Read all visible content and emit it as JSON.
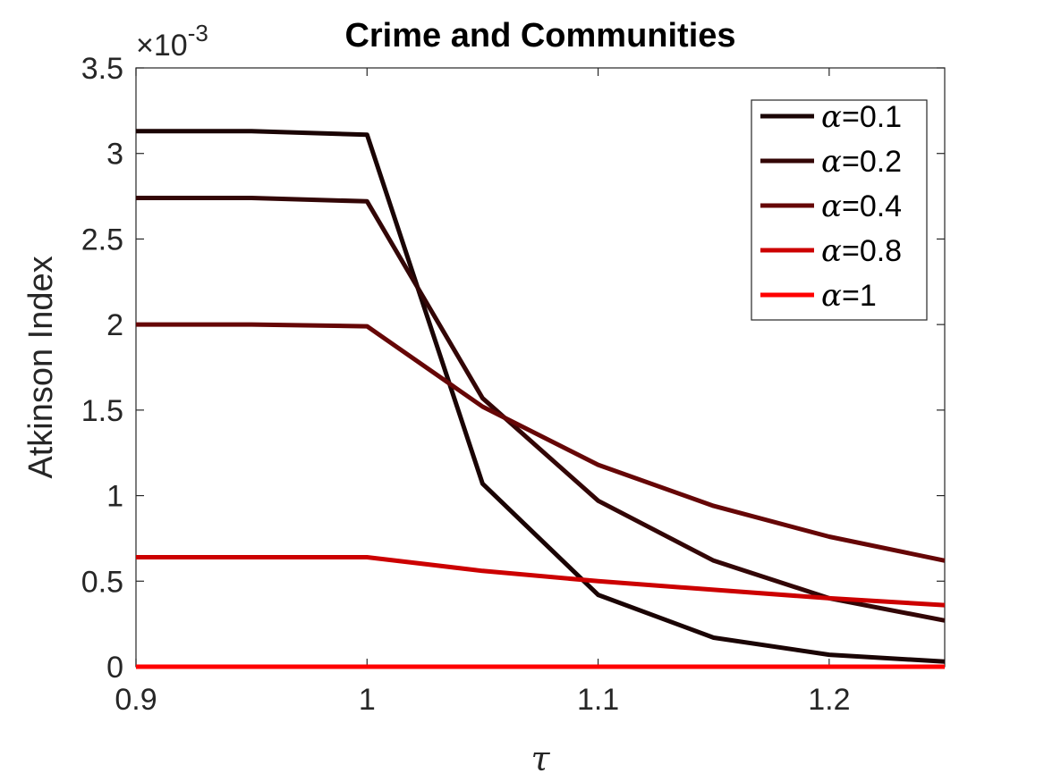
{
  "chart_data": {
    "type": "line",
    "title": "Crime and Communities",
    "xlabel": "τ",
    "ylabel": "Atkinson Index",
    "y_exponent_label": "×10",
    "y_exponent_power": "-3",
    "xlim": [
      0.9,
      1.25
    ],
    "ylim": [
      0,
      3.5
    ],
    "x_ticks": [
      0.9,
      1.0,
      1.1,
      1.2
    ],
    "x_tick_labels": [
      "0.9",
      "1",
      "1.1",
      "1.2"
    ],
    "y_ticks": [
      0,
      0.5,
      1,
      1.5,
      2,
      2.5,
      3,
      3.5
    ],
    "y_tick_labels": [
      "0",
      "0.5",
      "1",
      "1.5",
      "2",
      "2.5",
      "3",
      "3.5"
    ],
    "grid": false,
    "legend_position": "top-right",
    "x": [
      0.9,
      0.95,
      1.0,
      1.05,
      1.1,
      1.15,
      1.2,
      1.25
    ],
    "series": [
      {
        "name": "α=0.1",
        "alpha_value": "=0.1",
        "color": "#1a0404",
        "values": [
          3.13,
          3.13,
          3.11,
          1.07,
          0.42,
          0.17,
          0.07,
          0.03
        ]
      },
      {
        "name": "α=0.2",
        "alpha_value": "=0.2",
        "color": "#330606",
        "values": [
          2.74,
          2.74,
          2.72,
          1.57,
          0.97,
          0.62,
          0.4,
          0.27
        ]
      },
      {
        "name": "α=0.4",
        "alpha_value": "=0.4",
        "color": "#660606",
        "values": [
          2.0,
          2.0,
          1.99,
          1.52,
          1.18,
          0.94,
          0.76,
          0.62
        ]
      },
      {
        "name": "α=0.8",
        "alpha_value": "=0.8",
        "color": "#cc0000",
        "values": [
          0.64,
          0.64,
          0.64,
          0.56,
          0.5,
          0.45,
          0.4,
          0.36
        ]
      },
      {
        "name": "α=1",
        "alpha_value": "=1",
        "color": "#ff0000",
        "values": [
          0,
          0,
          0,
          0,
          0,
          0,
          0,
          0
        ]
      }
    ]
  }
}
